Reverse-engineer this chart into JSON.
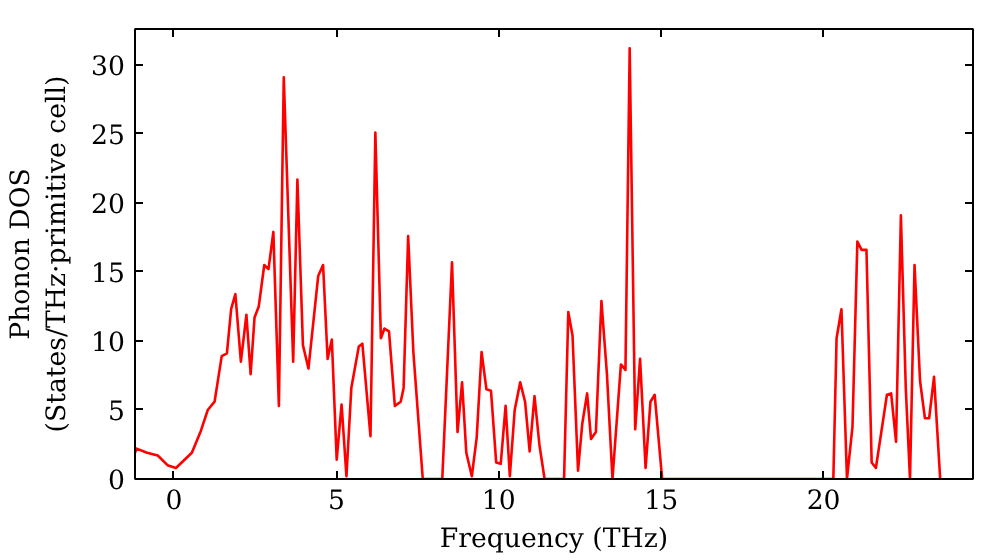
{
  "chart_data": {
    "type": "line",
    "xlabel": "Frequency (THz)",
    "ylabel": "Phonon DOS\n(States/THz·primitive cell)",
    "xlim": [
      -1.2,
      24.6
    ],
    "ylim": [
      0,
      32.6
    ],
    "xticks": [
      0,
      5,
      10,
      15,
      20
    ],
    "yticks": [
      0,
      5,
      10,
      15,
      20,
      25,
      30
    ],
    "grid": false,
    "line_style": "solid",
    "marker": "none",
    "series": [
      {
        "color": "#ff0000",
        "x": [
          -1.2,
          -1.15,
          -0.83,
          -0.5,
          -0.2,
          0.06,
          0.55,
          0.83,
          1.04,
          1.25,
          1.47,
          1.63,
          1.76,
          1.89,
          2.06,
          2.23,
          2.36,
          2.48,
          2.61,
          2.78,
          2.91,
          3.06,
          3.23,
          3.38,
          3.67,
          3.8,
          3.97,
          4.14,
          4.44,
          4.59,
          4.73,
          4.86,
          5.01,
          5.16,
          5.31,
          5.46,
          5.69,
          5.8,
          6.05,
          6.2,
          6.37,
          6.48,
          6.62,
          6.8,
          6.98,
          7.07,
          7.21,
          7.37,
          7.66,
          8.26,
          8.56,
          8.73,
          8.87,
          9.0,
          9.17,
          9.32,
          9.47,
          9.62,
          9.76,
          9.92,
          10.06,
          10.21,
          10.34,
          10.49,
          10.66,
          10.81,
          10.95,
          11.1,
          11.25,
          11.41,
          12.01,
          12.14,
          12.27,
          12.44,
          12.57,
          12.72,
          12.84,
          12.99,
          13.16,
          13.33,
          13.5,
          13.76,
          13.9,
          14.03,
          14.2,
          14.35,
          14.52,
          14.67,
          14.8,
          15.03,
          20.3,
          20.4,
          20.55,
          20.72,
          20.89,
          21.04,
          21.17,
          21.32,
          21.48,
          21.61,
          21.95,
          22.08,
          22.23,
          22.38,
          22.53,
          22.66,
          22.8,
          22.97,
          23.12,
          23.25,
          23.4,
          23.59
        ],
        "values": [
          1.9,
          2.2,
          1.9,
          1.7,
          1.0,
          0.8,
          1.9,
          3.5,
          5.0,
          5.6,
          8.9,
          9.1,
          12.3,
          13.4,
          8.5,
          11.9,
          7.6,
          11.7,
          12.5,
          15.5,
          15.2,
          17.9,
          5.3,
          29.1,
          8.5,
          21.7,
          9.7,
          8.0,
          14.7,
          15.5,
          8.7,
          10.1,
          1.4,
          5.4,
          0.2,
          6.6,
          9.6,
          9.8,
          3.1,
          25.1,
          10.2,
          10.9,
          10.7,
          5.3,
          5.6,
          6.6,
          17.6,
          9.2,
          0,
          0,
          15.7,
          3.4,
          7.0,
          1.9,
          0.2,
          3.0,
          9.2,
          6.5,
          6.4,
          1.2,
          1.1,
          5.3,
          0.2,
          5.0,
          7.0,
          5.6,
          2.0,
          6.0,
          2.5,
          0,
          0,
          12.1,
          10.4,
          0.6,
          4.0,
          6.2,
          2.9,
          3.4,
          12.9,
          7.6,
          0,
          8.3,
          7.9,
          31.2,
          3.6,
          8.7,
          0.8,
          5.6,
          6.1,
          0,
          0,
          10.2,
          12.3,
          0,
          3.8,
          17.2,
          16.6,
          16.6,
          1.2,
          0.8,
          6.1,
          6.2,
          2.7,
          19.1,
          6.6,
          0,
          15.5,
          7.1,
          4.4,
          4.4,
          7.4,
          0
        ]
      }
    ]
  }
}
